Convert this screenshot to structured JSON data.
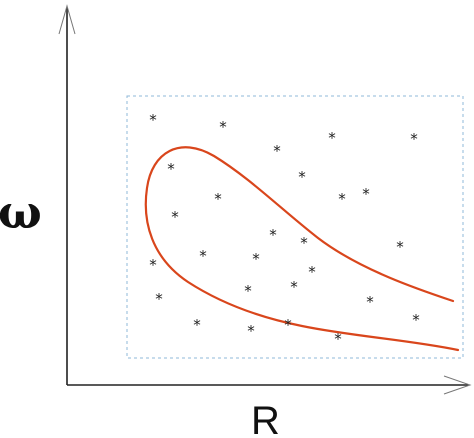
{
  "diagram": {
    "y_axis_label": "ω",
    "x_axis_label": "R",
    "point_marker": "*",
    "colors": {
      "axis": "#222222",
      "arrow": "#777777",
      "box": "#8fb8d8",
      "curve": "#d9461c",
      "marker": "#222222"
    }
  }
}
